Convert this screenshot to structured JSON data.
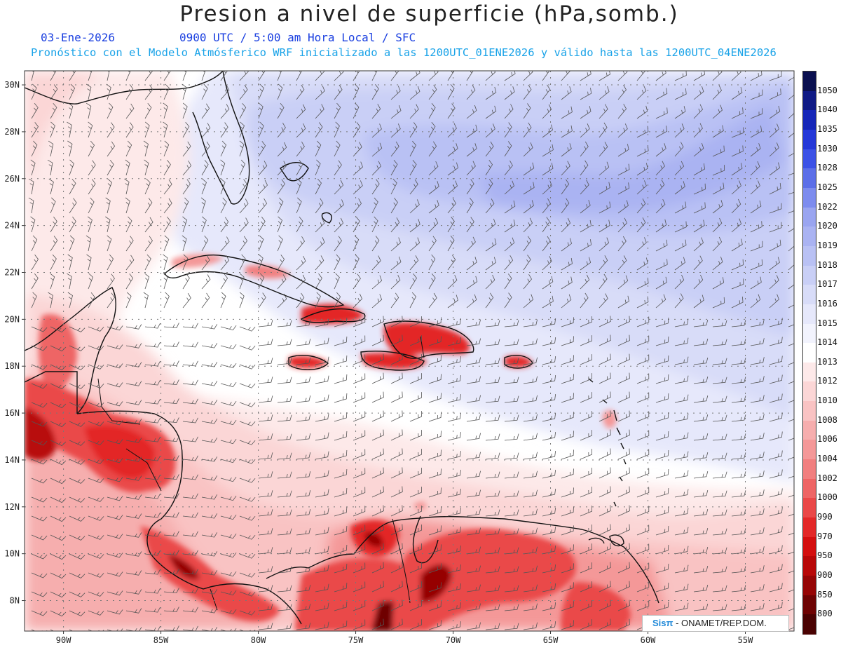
{
  "title": "Presion a nivel de superficie (hPa,somb.)",
  "date": "03-Ene-2026",
  "time_label": "0900 UTC / 5:00 am Hora Local / SFC",
  "forecast_note": "Pronóstico con el Modelo Atmósferico WRF inicializado a las 1200UTC_01ENE2026 y válido hasta las  1200UTC_04ENE2026",
  "credit": {
    "brand": "Sisπ",
    "org": " - ONAMET/REP.DOM."
  },
  "map": {
    "lon_range": [
      -92,
      -52.5
    ],
    "lat_range": [
      6.7,
      30.6
    ],
    "lat_ticks": [
      "30N",
      "28N",
      "26N",
      "24N",
      "22N",
      "20N",
      "18N",
      "16N",
      "14N",
      "12N",
      "10N",
      "8N"
    ],
    "lon_ticks": [
      "90W",
      "85W",
      "80W",
      "75W",
      "70W",
      "65W",
      "60W",
      "55W"
    ]
  },
  "legend": [
    {
      "label": "1050",
      "color": "#0a1050"
    },
    {
      "label": "1040",
      "color": "#0f1a85"
    },
    {
      "label": "1035",
      "color": "#1526b8"
    },
    {
      "label": "1030",
      "color": "#2438d8"
    },
    {
      "label": "1028",
      "color": "#3c52e6"
    },
    {
      "label": "1025",
      "color": "#5c6fe8"
    },
    {
      "label": "1022",
      "color": "#7d8cee"
    },
    {
      "label": "1020",
      "color": "#9aa5f0"
    },
    {
      "label": "1019",
      "color": "#aab3f2"
    },
    {
      "label": "1018",
      "color": "#b9c1f4"
    },
    {
      "label": "1017",
      "color": "#c9cff6"
    },
    {
      "label": "1016",
      "color": "#d8dcf8"
    },
    {
      "label": "1015",
      "color": "#e6e8fb"
    },
    {
      "label": "1014",
      "color": "#f2f3fd"
    },
    {
      "label": "1013",
      "color": "#ffffff"
    },
    {
      "label": "1012",
      "color": "#fde9e9"
    },
    {
      "label": "1010",
      "color": "#fbd6d6"
    },
    {
      "label": "1008",
      "color": "#f9c3c3"
    },
    {
      "label": "1006",
      "color": "#f6aeae"
    },
    {
      "label": "1004",
      "color": "#f49898"
    },
    {
      "label": "1002",
      "color": "#f17f7f"
    },
    {
      "label": "1000",
      "color": "#ee6565"
    },
    {
      "label": "990",
      "color": "#ea4848"
    },
    {
      "label": "970",
      "color": "#e32828"
    },
    {
      "label": "950",
      "color": "#d40f0f"
    },
    {
      "label": "900",
      "color": "#b80808"
    },
    {
      "label": "850",
      "color": "#960505"
    },
    {
      "label": "800",
      "color": "#6e0303"
    },
    {
      "label": "",
      "color": "#4a0202"
    }
  ]
}
